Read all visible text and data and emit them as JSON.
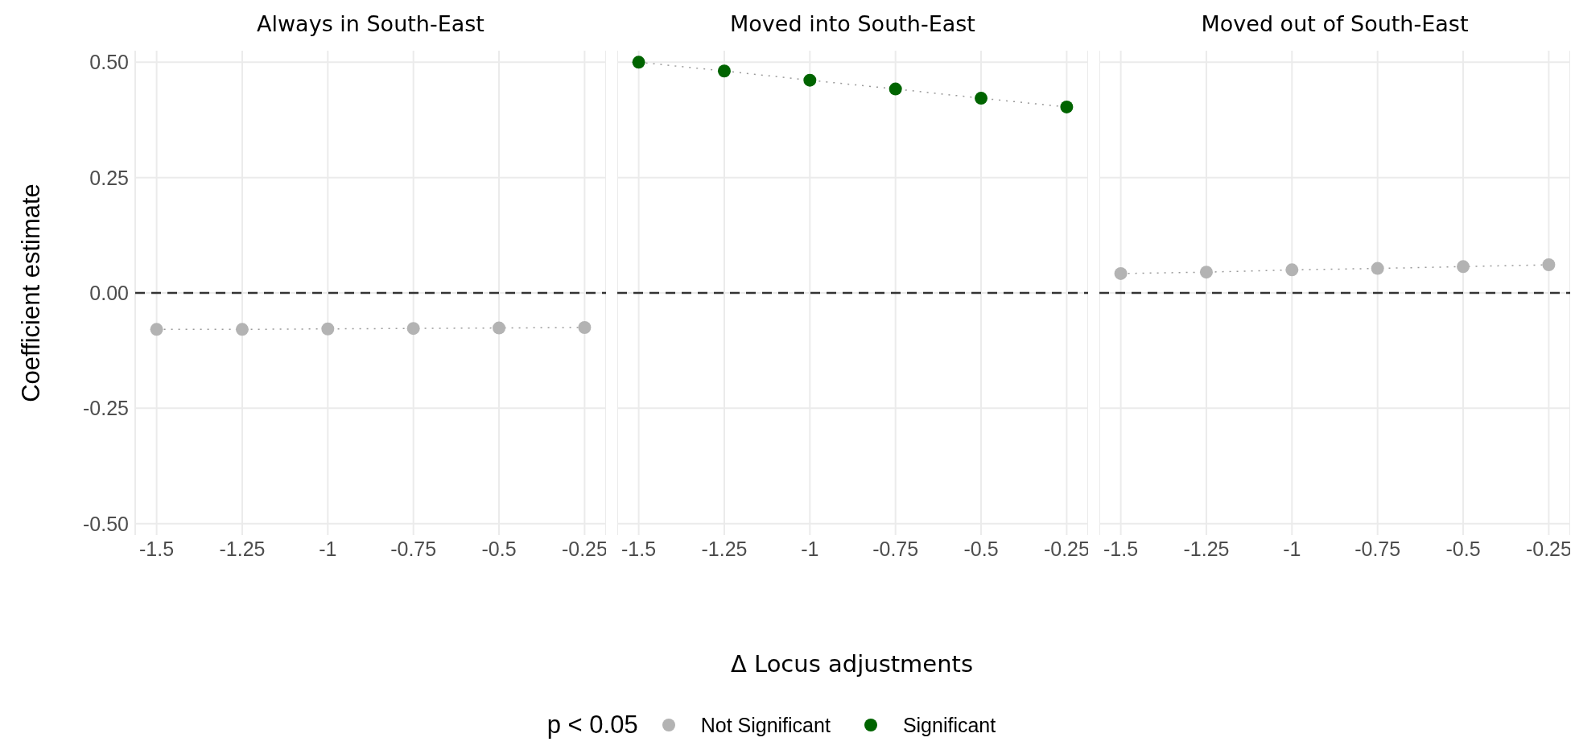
{
  "chart_data": [
    {
      "type": "line",
      "title": "Always in South-East",
      "ylabel": "Coefficient estimate",
      "legend_title": "p < 0.05",
      "legend": "bottom",
      "x": [
        -1.5,
        -1.25,
        -1,
        -0.75,
        -0.5,
        -0.25
      ],
      "series": [
        {
          "name": "Not Significant",
          "color": "#b3b3b3",
          "values": [
            -0.079,
            -0.079,
            -0.078,
            -0.077,
            -0.076,
            -0.075
          ]
        }
      ],
      "xlim": [
        -1.5625,
        -0.1875
      ],
      "xticks": [
        -1.5,
        -1.25,
        -1,
        -0.75,
        -0.5,
        -0.25
      ],
      "ylim": [
        -0.525,
        0.525
      ],
      "yticks": [
        {
          "value": -0.5,
          "label": "-0.50"
        },
        {
          "value": -0.25,
          "label": "-0.25"
        },
        {
          "value": 0,
          "label": "0.00"
        },
        {
          "value": 0.25,
          "label": "0.25"
        },
        {
          "value": 0.5,
          "label": "0.50"
        }
      ],
      "ref_lines": [
        {
          "axis": "y",
          "value": 0,
          "color": "#333333",
          "line_style": "dashed"
        }
      ],
      "grid": true,
      "marker": "circle",
      "line_style": "dotted"
    },
    {
      "type": "line",
      "title": "Moved into South-East",
      "xlabel": "Δ Locus adjustments",
      "x": [
        -1.5,
        -1.25,
        -1,
        -0.75,
        -0.5,
        -0.25
      ],
      "series": [
        {
          "name": "Significant",
          "color": "#006400",
          "values": [
            0.5,
            0.481,
            0.461,
            0.442,
            0.422,
            0.403
          ]
        }
      ],
      "xlim": [
        -1.5625,
        -0.1875
      ],
      "xticks": [
        -1.5,
        -1.25,
        -1,
        -0.75,
        -0.5,
        -0.25
      ],
      "ylim": [
        -0.525,
        0.525
      ],
      "yticks": [
        -0.5,
        -0.25,
        0,
        0.25,
        0.5
      ],
      "tick_labels": "x",
      "ref_lines": [
        {
          "axis": "y",
          "value": 0,
          "color": "#333333",
          "line_style": "dashed"
        }
      ],
      "grid": true,
      "marker": "circle",
      "line_style": "dotted"
    },
    {
      "type": "line",
      "title": "Moved out of South-East",
      "x": [
        -1.5,
        -1.25,
        -1,
        -0.75,
        -0.5,
        -0.25
      ],
      "series": [
        {
          "name": "Not Significant",
          "color": "#b3b3b3",
          "values": [
            0.042,
            0.045,
            0.05,
            0.053,
            0.057,
            0.061
          ]
        }
      ],
      "xlim": [
        -1.5625,
        -0.1875
      ],
      "xticks": [
        -1.5,
        -1.25,
        -1,
        -0.75,
        -0.5,
        -0.25
      ],
      "ylim": [
        -0.525,
        0.525
      ],
      "yticks": [
        -0.5,
        -0.25,
        0,
        0.25,
        0.5
      ],
      "tick_labels": "x",
      "ref_lines": [
        {
          "axis": "y",
          "value": 0,
          "color": "#333333",
          "line_style": "dashed"
        }
      ],
      "grid": true,
      "marker": "circle",
      "line_style": "dotted"
    }
  ]
}
